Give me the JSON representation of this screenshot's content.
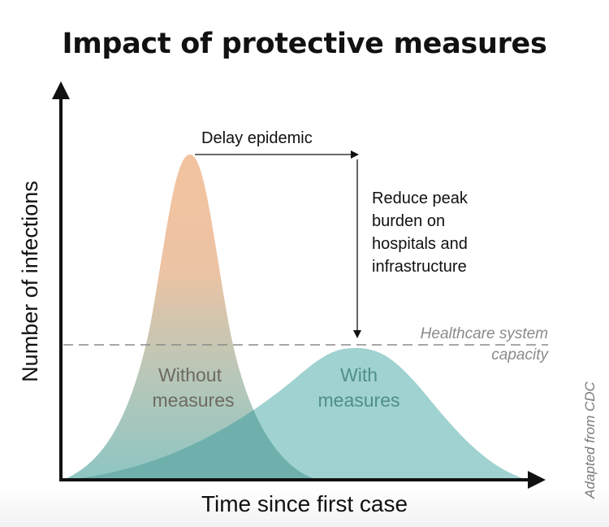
{
  "title": "Impact of protective measures",
  "ylabel": "Number of infections",
  "xlabel": "Time since first case",
  "curves": {
    "without": {
      "label_line1": "Without",
      "label_line2": "measures"
    },
    "with": {
      "label_line1": "With",
      "label_line2": "measures"
    }
  },
  "annotations": {
    "delay": "Delay epidemic",
    "reduce_lines": [
      "Reduce peak",
      "burden on",
      "hospitals and",
      "infrastructure"
    ],
    "capacity_line1": "Healthcare system",
    "capacity_line2": "capacity"
  },
  "credit": "Adapted from CDC",
  "colors": {
    "without_top": "#f3c39f",
    "without_bottom": "#92c7c5",
    "with_fill": "#9fd2d0",
    "overlap": "#6fb0ad",
    "capacity_line": "#888888",
    "axis": "#111111"
  }
}
